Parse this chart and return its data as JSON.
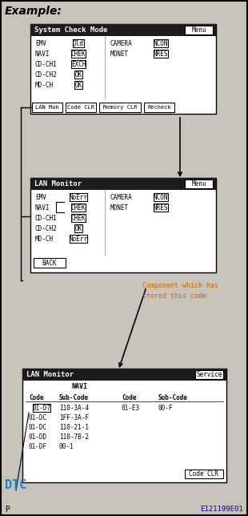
{
  "title": "Example:",
  "bg_color": "#c8c4bc",
  "panel_bg": "#1c1c1c",
  "white": "#ffffff",
  "black": "#000000",
  "cyan_text": "#1188cc",
  "orange_text": "#cc6600",
  "footer_left": "P",
  "footer_right": "E121199E01",
  "panel1_title": "System Check Mode",
  "panel1_btn": "Menu",
  "panel1_rows": [
    [
      "EMV",
      "Old",
      "CAMERA",
      "NCON"
    ],
    [
      "NAVI",
      "CHEK",
      "MONET",
      "NRES"
    ],
    [
      "CD-CH1",
      "EXCH",
      "",
      ""
    ],
    [
      "CD-CH2",
      "OK",
      "",
      ""
    ],
    [
      "MD-CH",
      "OK",
      "",
      ""
    ]
  ],
  "panel1_btns": [
    "LAN Mon",
    "Code CLR",
    "Memory CLR",
    "Recheck"
  ],
  "panel2_title": "LAN Monitor",
  "panel2_btn": "Menu",
  "panel2_rows": [
    [
      "EMV",
      "NoErr",
      "CAMERA",
      "NCON"
    ],
    [
      "NAVI",
      "CHEK",
      "MONET",
      "NRES"
    ],
    [
      "CD-CH1",
      "CHEK",
      "",
      ""
    ],
    [
      "CD-CH2",
      "OK",
      "",
      ""
    ],
    [
      "MD-CH",
      "NoErr",
      "",
      ""
    ]
  ],
  "panel2_back": "BACK",
  "annotation_text": "Component which has\nstored this code",
  "panel3_title": "LAN Monitor",
  "panel3_btn": "Service",
  "panel3_selected": "NAVI",
  "panel3_col_headers": [
    "Code",
    "Sub-Code",
    "Code",
    "Sub-Code"
  ],
  "panel3_rows": [
    [
      "01-D7",
      "110-3A-4",
      "01-E3",
      "00-F"
    ],
    [
      "01-DC",
      "1FF-3A-F",
      "",
      ""
    ],
    [
      "01-DC",
      "110-21-1",
      "",
      ""
    ],
    [
      "01-DD",
      "110-7B-2",
      "",
      ""
    ],
    [
      "01-DF",
      "00-1",
      "",
      ""
    ]
  ],
  "panel3_btn2": "Code CLR",
  "dtc_label": "DTC"
}
